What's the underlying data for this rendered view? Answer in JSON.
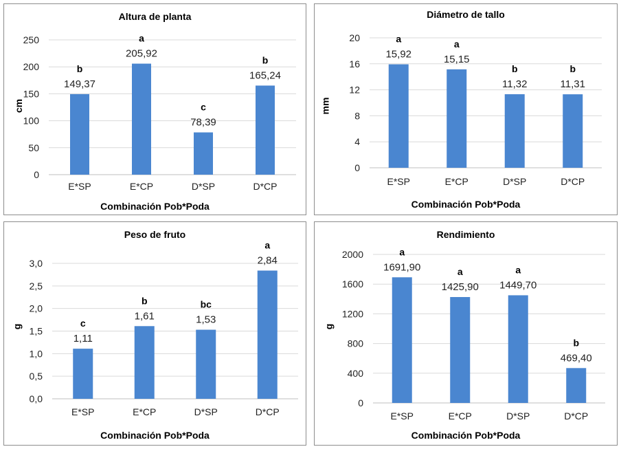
{
  "chart_data": [
    {
      "type": "bar",
      "title": "Altura de planta",
      "xlabel": "Combinación Pob*Poda",
      "ylabel": "cm",
      "categories": [
        "E*SP",
        "E*CP",
        "D*SP",
        "D*CP"
      ],
      "values": [
        149.37,
        205.92,
        78.39,
        165.24
      ],
      "value_labels": [
        "149,37",
        "205,92",
        "78,39",
        "165,24"
      ],
      "letters": [
        "b",
        "a",
        "c",
        "b"
      ],
      "ylim": [
        0,
        250
      ],
      "yticks": [
        "0",
        "50",
        "100",
        "150",
        "200",
        "250"
      ],
      "grid": true,
      "color": "#4a86d0"
    },
    {
      "type": "bar",
      "title": "Diámetro de tallo",
      "xlabel": "Combinación Pob*Poda",
      "ylabel": "mm",
      "categories": [
        "E*SP",
        "E*CP",
        "D*SP",
        "D*CP"
      ],
      "values": [
        15.92,
        15.15,
        11.32,
        11.31
      ],
      "value_labels": [
        "15,92",
        "15,15",
        "11,32",
        "11,31"
      ],
      "letters": [
        "a",
        "a",
        "b",
        "b"
      ],
      "ylim": [
        0,
        20
      ],
      "yticks": [
        "0",
        "4",
        "8",
        "12",
        "16",
        "20"
      ],
      "grid": true,
      "color": "#4a86d0"
    },
    {
      "type": "bar",
      "title": "Peso de fruto",
      "xlabel": "Combinación Pob*Poda",
      "ylabel": "g",
      "categories": [
        "E*SP",
        "E*CP",
        "D*SP",
        "D*CP"
      ],
      "values": [
        1.11,
        1.61,
        1.53,
        2.84
      ],
      "value_labels": [
        "1,11",
        "1,61",
        "1,53",
        "2,84"
      ],
      "letters": [
        "c",
        "b",
        "bc",
        "a"
      ],
      "ylim": [
        0,
        3
      ],
      "yticks": [
        "0,0",
        "0,5",
        "1,0",
        "1,5",
        "2,0",
        "2,5",
        "3,0"
      ],
      "grid": true,
      "color": "#4a86d0"
    },
    {
      "type": "bar",
      "title": "Rendimiento",
      "xlabel": "Combinación Pob*Poda",
      "ylabel": "g",
      "categories": [
        "E*SP",
        "E*CP",
        "D*SP",
        "D*CP"
      ],
      "values": [
        1691.9,
        1425.9,
        1449.7,
        469.4
      ],
      "value_labels": [
        "1691,90",
        "1425,90",
        "1449,70",
        "469,40"
      ],
      "letters": [
        "a",
        "a",
        "a",
        "b"
      ],
      "ylim": [
        0,
        2000
      ],
      "yticks": [
        "0",
        "400",
        "800",
        "1200",
        "1600",
        "2000"
      ],
      "grid": true,
      "color": "#4a86d0"
    }
  ]
}
